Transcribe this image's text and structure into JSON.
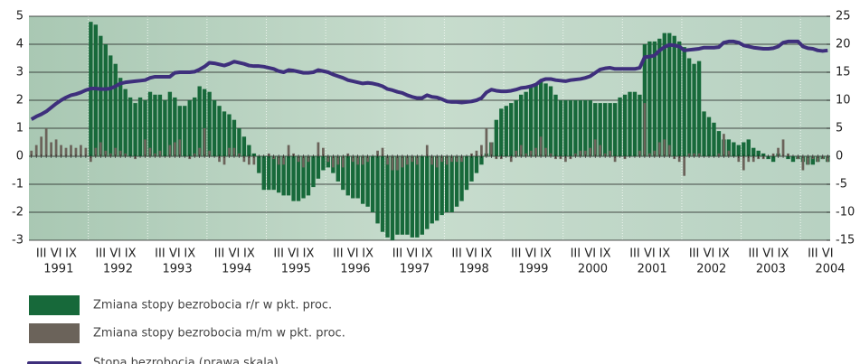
{
  "chart_data": {
    "type": "bar_line",
    "categories": [
      null,
      null,
      "III",
      null,
      null,
      "VI",
      null,
      null,
      "IX",
      null,
      null,
      null,
      null,
      null,
      "III",
      null,
      null,
      "VI",
      null,
      null,
      "IX",
      null,
      null,
      null,
      null,
      null,
      "III",
      null,
      null,
      "VI",
      null,
      null,
      "IX",
      null,
      null,
      null,
      null,
      null,
      "III",
      null,
      null,
      "VI",
      null,
      null,
      "IX",
      null,
      null,
      null,
      null,
      null,
      "III",
      null,
      null,
      "VI",
      null,
      null,
      "IX",
      null,
      null,
      null,
      null,
      null,
      "III",
      null,
      null,
      "VI",
      null,
      null,
      "IX",
      null,
      null,
      null,
      null,
      null,
      "III",
      null,
      null,
      "VI",
      null,
      null,
      "IX",
      null,
      null,
      null,
      null,
      null,
      "III",
      null,
      null,
      "VI",
      null,
      null,
      "IX",
      null,
      null,
      null,
      null,
      null,
      "III",
      null,
      null,
      "VI",
      null,
      null,
      "IX",
      null,
      null,
      null,
      null,
      null,
      "III",
      null,
      null,
      "VI",
      null,
      null,
      "IX",
      null,
      null,
      null,
      null,
      null,
      "III",
      null,
      null,
      "VI",
      null,
      null,
      "IX",
      null,
      null,
      null,
      null,
      null,
      "III",
      null,
      null,
      "VI",
      null,
      null,
      "IX",
      null,
      null,
      null,
      null,
      null,
      "III",
      null,
      null,
      "VI",
      null,
      null,
      "IX",
      null,
      null,
      null,
      null,
      null,
      "III",
      null,
      null,
      "VI"
    ],
    "years": [
      "1991",
      "1992",
      "1993",
      "1994",
      "1995",
      "1996",
      "1997",
      "1998",
      "1999",
      "2000",
      "2001",
      "2002",
      "2003",
      "2004"
    ],
    "ylim": [
      -3,
      5
    ],
    "yticks": [
      -3,
      -2,
      -1,
      0,
      1,
      2,
      3,
      4,
      5
    ],
    "y2lim": [
      -15,
      25
    ],
    "y2ticks": [
      -15,
      -10,
      -5,
      0,
      5,
      10,
      15,
      20,
      25
    ],
    "grid": true,
    "series": [
      {
        "name": "Zmiana stopy bezrobocia r/r w pkt. proc.",
        "color": "#17693a",
        "kind": "bar",
        "values": [
          null,
          null,
          null,
          null,
          null,
          null,
          null,
          null,
          null,
          null,
          null,
          null,
          4.8,
          4.7,
          4.3,
          4.0,
          3.6,
          3.3,
          2.8,
          2.4,
          2.1,
          1.9,
          2.1,
          2.0,
          2.3,
          2.2,
          2.2,
          2.0,
          2.3,
          2.1,
          1.8,
          1.8,
          2.0,
          2.1,
          2.5,
          2.4,
          2.3,
          2.0,
          1.8,
          1.6,
          1.5,
          1.3,
          1.0,
          0.7,
          0.4,
          0.1,
          -0.6,
          -1.2,
          -1.2,
          -1.2,
          -1.3,
          -1.4,
          -1.4,
          -1.6,
          -1.6,
          -1.5,
          -1.4,
          -1.1,
          -0.8,
          -0.5,
          -0.4,
          -0.6,
          -0.9,
          -1.2,
          -1.4,
          -1.5,
          -1.5,
          -1.7,
          -1.8,
          -2.0,
          -2.4,
          -2.7,
          -2.9,
          -3.0,
          -2.8,
          -2.8,
          -2.8,
          -2.9,
          -2.9,
          -2.8,
          -2.6,
          -2.4,
          -2.3,
          -2.1,
          -2.0,
          -2.0,
          -1.8,
          -1.6,
          -1.2,
          -0.9,
          -0.6,
          -0.3,
          0.1,
          0.5,
          1.3,
          1.7,
          1.8,
          1.9,
          2.0,
          2.2,
          2.3,
          2.5,
          2.6,
          2.7,
          2.6,
          2.5,
          2.2,
          2.0,
          2.0,
          2.0,
          2.0,
          2.0,
          2.0,
          2.0,
          1.9,
          1.9,
          1.9,
          1.9,
          1.9,
          2.1,
          2.2,
          2.3,
          2.3,
          2.2,
          4.0,
          4.1,
          4.1,
          4.2,
          4.4,
          4.4,
          4.3,
          4.1,
          3.9,
          3.5,
          3.3,
          3.4,
          1.6,
          1.4,
          1.2,
          0.9,
          0.6,
          0.6,
          0.5,
          0.4,
          0.5,
          0.6,
          0.3,
          0.2,
          0.1,
          -0.1,
          -0.2,
          0.1,
          0.0,
          -0.1,
          -0.2,
          -0.1,
          -0.2,
          -0.3,
          -0.3,
          -0.2,
          -0.1,
          -0.2
        ]
      },
      {
        "name": "Zmiana stopy bezrobocia m/m w pkt. proc.",
        "color": "#6b635a",
        "kind": "bar",
        "values": [
          0.2,
          0.4,
          0.7,
          1.0,
          0.5,
          0.6,
          0.4,
          0.3,
          0.4,
          0.3,
          0.4,
          0.3,
          -0.2,
          0.3,
          0.5,
          0.2,
          0.1,
          0.3,
          0.2,
          0.1,
          0.0,
          -0.1,
          0.0,
          0.6,
          0.3,
          0.1,
          0.2,
          0.0,
          0.4,
          0.5,
          0.6,
          0.0,
          -0.1,
          0.1,
          0.3,
          1.0,
          0.2,
          0.0,
          -0.2,
          -0.3,
          0.3,
          0.3,
          0.1,
          -0.2,
          -0.3,
          -0.3,
          0.0,
          0.0,
          0.1,
          -0.1,
          -0.3,
          -0.3,
          0.4,
          0.1,
          -0.2,
          -0.4,
          -0.2,
          0.0,
          0.5,
          0.3,
          -0.2,
          -0.4,
          -0.3,
          -0.4,
          0.1,
          -0.2,
          -0.3,
          -0.3,
          -0.2,
          0.0,
          0.2,
          0.3,
          -0.3,
          -0.5,
          -0.5,
          -0.4,
          -0.3,
          -0.2,
          -0.3,
          0.0,
          0.4,
          -0.3,
          -0.4,
          -0.2,
          -0.3,
          -0.2,
          -0.2,
          -0.2,
          0.0,
          0.1,
          0.2,
          0.4,
          1.0,
          0.5,
          -0.1,
          -0.1,
          0.0,
          -0.2,
          0.2,
          0.4,
          0.1,
          0.2,
          0.3,
          0.7,
          0.3,
          0.1,
          -0.1,
          -0.1,
          -0.2,
          -0.1,
          0.1,
          0.2,
          0.2,
          0.3,
          0.6,
          0.4,
          0.1,
          0.2,
          -0.2,
          0.0,
          -0.1,
          0.0,
          0.0,
          0.2,
          1.9,
          0.1,
          0.2,
          0.5,
          0.6,
          0.4,
          -0.1,
          -0.2,
          -0.7,
          0.1,
          0.1,
          0.1,
          0.0,
          0.0,
          0.0,
          0.1,
          0.8,
          0.2,
          0.0,
          -0.2,
          -0.5,
          -0.2,
          -0.2,
          -0.1,
          -0.1,
          0.0,
          0.1,
          0.3,
          0.6,
          0.1,
          0.0,
          -0.1,
          -0.5,
          -0.3,
          -0.1,
          -0.2,
          -0.1,
          -0.2
        ]
      },
      {
        "name": "Stopa bezrobocia (prawa skala)",
        "color": "#3e2f7c",
        "kind": "line",
        "axis": "y2",
        "values": [
          6.6,
          7.1,
          7.5,
          8.0,
          8.7,
          9.4,
          10.0,
          10.5,
          10.9,
          11.1,
          11.4,
          11.8,
          12.1,
          12.1,
          12.0,
          12.0,
          12.1,
          12.5,
          13.0,
          13.2,
          13.3,
          13.4,
          13.5,
          13.6,
          14.0,
          14.2,
          14.2,
          14.2,
          14.2,
          14.9,
          15.0,
          15.0,
          15.0,
          15.1,
          15.5,
          16.0,
          16.7,
          16.6,
          16.4,
          16.2,
          16.5,
          16.9,
          16.7,
          16.5,
          16.2,
          16.1,
          16.1,
          16.0,
          15.8,
          15.6,
          15.2,
          15.0,
          15.4,
          15.3,
          15.1,
          14.9,
          14.9,
          15.0,
          15.4,
          15.2,
          15.0,
          14.6,
          14.3,
          14.0,
          13.6,
          13.4,
          13.2,
          13.0,
          13.1,
          13.0,
          12.8,
          12.5,
          12.0,
          11.8,
          11.5,
          11.3,
          10.9,
          10.6,
          10.4,
          10.4,
          10.9,
          10.6,
          10.5,
          10.2,
          9.8,
          9.7,
          9.7,
          9.6,
          9.7,
          9.8,
          10.0,
          10.4,
          11.4,
          11.9,
          11.7,
          11.6,
          11.6,
          11.7,
          11.9,
          12.2,
          12.3,
          12.5,
          12.8,
          13.5,
          13.8,
          13.8,
          13.6,
          13.5,
          13.4,
          13.6,
          13.7,
          13.8,
          14.0,
          14.3,
          14.9,
          15.5,
          15.7,
          15.8,
          15.6,
          15.6,
          15.6,
          15.6,
          15.6,
          15.8,
          17.7,
          17.8,
          18.0,
          18.9,
          19.5,
          19.9,
          19.8,
          19.6,
          18.9,
          19.0,
          19.1,
          19.2,
          19.4,
          19.4,
          19.4,
          19.5,
          20.3,
          20.5,
          20.5,
          20.3,
          19.8,
          19.6,
          19.4,
          19.3,
          19.2,
          19.2,
          19.3,
          19.6,
          20.3,
          20.5,
          20.5,
          20.5,
          19.6,
          19.3,
          19.2,
          18.9,
          18.8,
          18.9
        ]
      }
    ]
  }
}
